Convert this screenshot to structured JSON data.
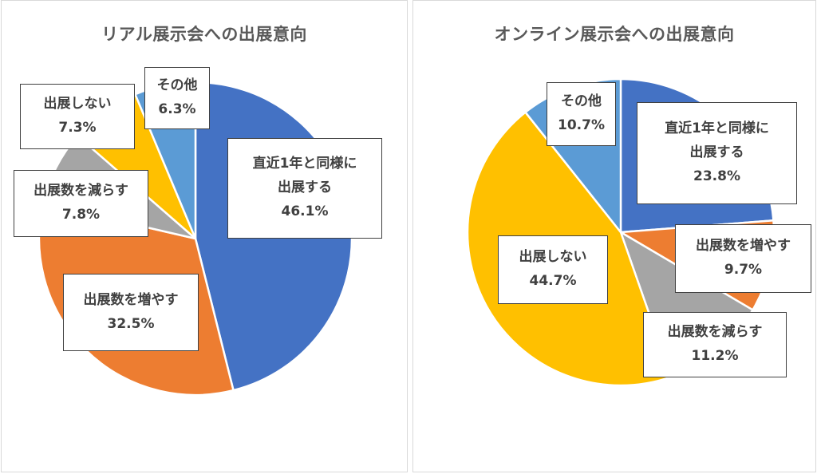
{
  "chart_data": [
    {
      "type": "pie",
      "title": "リアル展示会への出展意向",
      "slices": [
        {
          "label": "直近1年と同様に出展する",
          "label_lines": [
            "直近1年と同様に",
            "出展する"
          ],
          "value": 46.1,
          "display": "46.1%",
          "color": "#4472C4"
        },
        {
          "label": "出展数を増やす",
          "label_lines": [
            "出展数を増やす"
          ],
          "value": 32.5,
          "display": "32.5%",
          "color": "#ED7D31"
        },
        {
          "label": "出展数を減らす",
          "label_lines": [
            "出展数を減らす"
          ],
          "value": 7.8,
          "display": "7.8%",
          "color": "#A5A5A5"
        },
        {
          "label": "出展しない",
          "label_lines": [
            "出展しない"
          ],
          "value": 7.3,
          "display": "7.3%",
          "color": "#FFC000"
        },
        {
          "label": "その他",
          "label_lines": [
            "その他"
          ],
          "value": 6.3,
          "display": "6.3%",
          "color": "#5B9BD5"
        }
      ]
    },
    {
      "type": "pie",
      "title": "オンライン展示会への出展意向",
      "slices": [
        {
          "label": "直近1年と同様に出展する",
          "label_lines": [
            "直近1年と同様に",
            "出展する"
          ],
          "value": 23.8,
          "display": "23.8%",
          "color": "#4472C4"
        },
        {
          "label": "出展数を増やす",
          "label_lines": [
            "出展数を増やす"
          ],
          "value": 9.7,
          "display": "9.7%",
          "color": "#ED7D31"
        },
        {
          "label": "出展数を減らす",
          "label_lines": [
            "出展数を減らす"
          ],
          "value": 11.2,
          "display": "11.2%",
          "color": "#A5A5A5"
        },
        {
          "label": "出展しない",
          "label_lines": [
            "出展しない"
          ],
          "value": 44.7,
          "display": "44.7%",
          "color": "#FFC000"
        },
        {
          "label": "その他",
          "label_lines": [
            "その他"
          ],
          "value": 10.7,
          "display": "10.7%",
          "color": "#5B9BD5"
        }
      ]
    }
  ]
}
